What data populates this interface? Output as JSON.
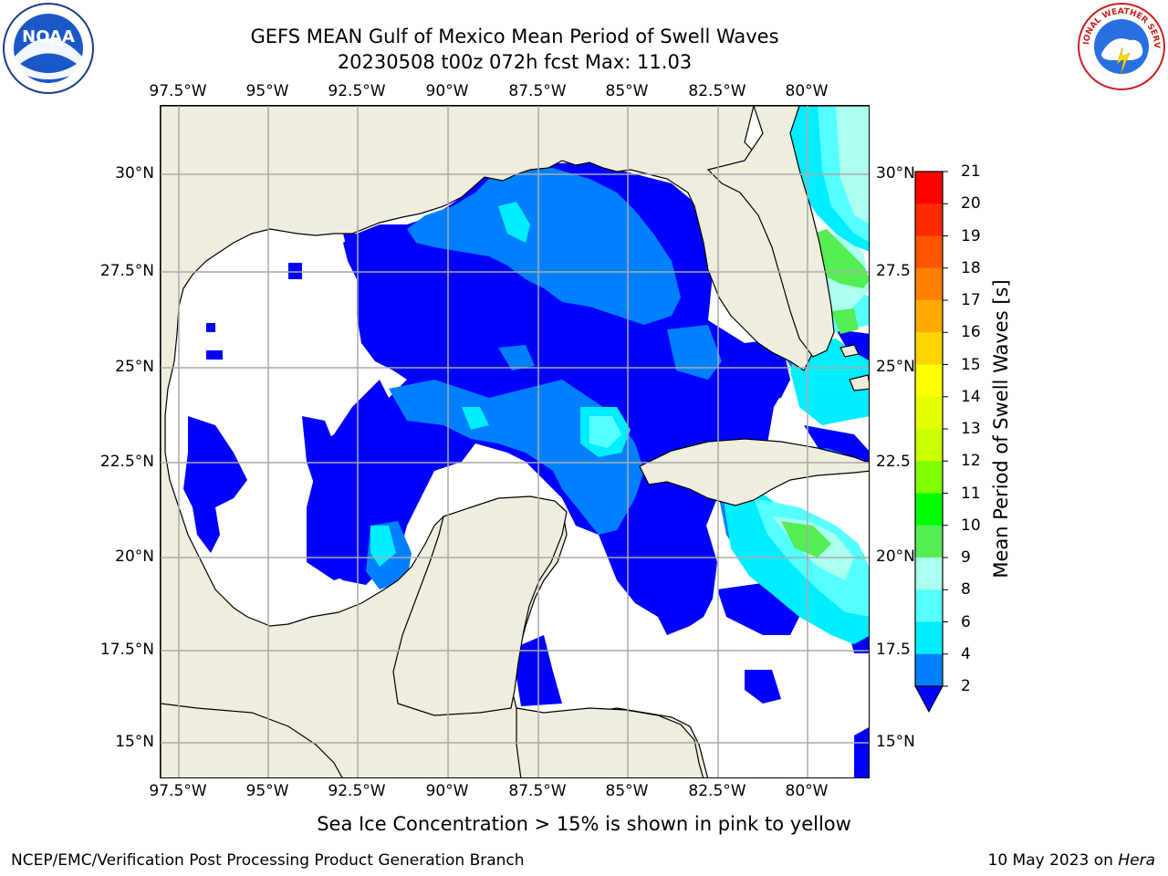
{
  "title_line1": "GEFS MEAN Gulf of Mexico Mean Period of Swell Waves",
  "title_line2": "20230508 t00z 072h fcst   Max: 11.03",
  "longitude_labels": [
    "97.5°W",
    "95°W",
    "92.5°W",
    "90°W",
    "87.5°W",
    "85°W",
    "82.5°W",
    "80°W"
  ],
  "latitude_labels_left": [
    "30°N",
    "27.5°N",
    "25°N",
    "22.5°N",
    "20°N",
    "17.5°N",
    "15°N"
  ],
  "latitude_labels_right": [
    "30°N",
    "27.5",
    "25°N",
    "22.5",
    "20°N",
    "17.5",
    "15°N"
  ],
  "colorbar": {
    "title": "Mean Period of Swell Waves [s]",
    "tick_labels": [
      "21",
      "20",
      "19",
      "18",
      "17",
      "16",
      "15",
      "14",
      "13",
      "12",
      "11",
      "10",
      "9",
      "8",
      "6",
      "4",
      "2"
    ],
    "colors": [
      "#ff0000",
      "#ff2a00",
      "#ff5500",
      "#ff8000",
      "#ffaa00",
      "#ffd500",
      "#ffff00",
      "#e6ff00",
      "#ccff00",
      "#80ff00",
      "#00ff00",
      "#55ee55",
      "#aaffee",
      "#55ffff",
      "#00eeff",
      "#0080ff",
      "#0000ff"
    ]
  },
  "map_colors": {
    "land": "#efedde",
    "sea_low": "#ffffff",
    "swell_2_4": "#0000ff",
    "swell_4_6": "#0080ff",
    "swell_6_8": "#00eeff",
    "swell_8_9": "#55ffff",
    "swell_9_10": "#aaffee",
    "swell_10_11": "#55ee55"
  },
  "footnote": "Sea Ice Concentration > 15% is shown in pink to yellow",
  "footer_left": "NCEP/EMC/Verification Post Processing Product Generation Branch",
  "footer_right_prefix": "10 May 2023 on ",
  "footer_right_host": "Hera",
  "logos": {
    "left": "NOAA",
    "right": "NATIONAL WEATHER SERVICE"
  }
}
